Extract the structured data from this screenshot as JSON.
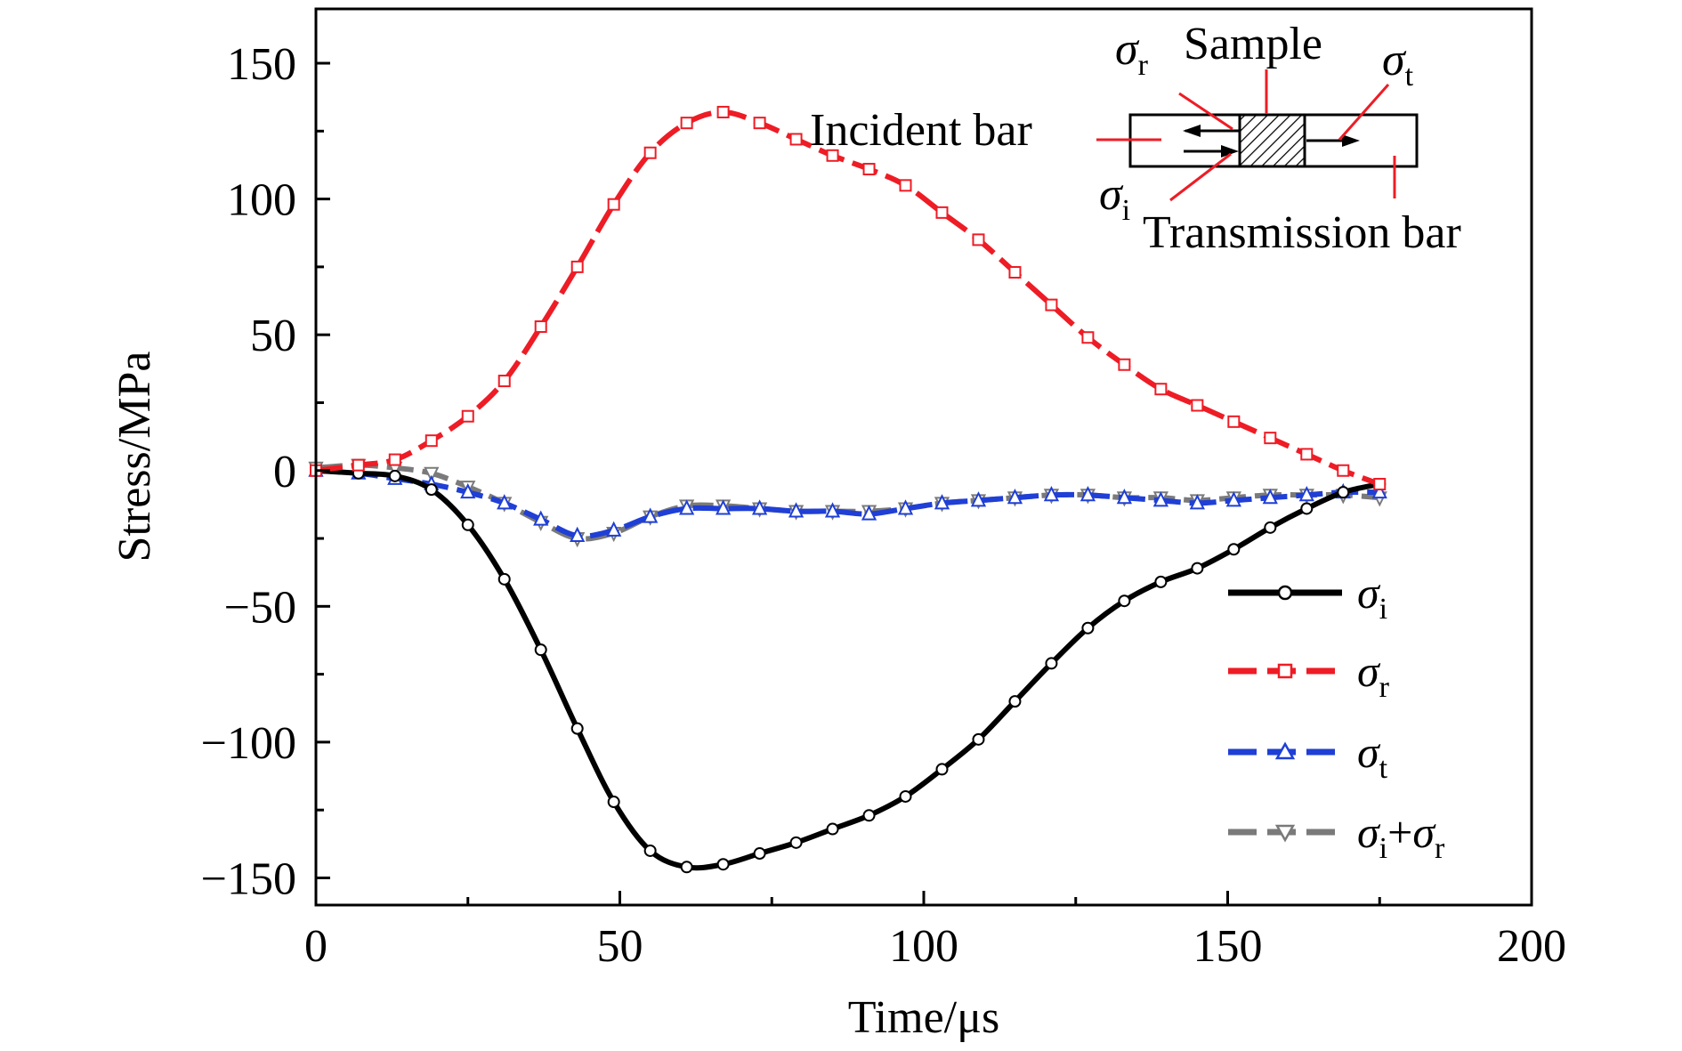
{
  "chart_data": {
    "type": "line",
    "title": "",
    "xlabel": "Time/μs",
    "ylabel": "Stress/MPa",
    "xlim": [
      0,
      200
    ],
    "ylim": [
      -160,
      170
    ],
    "xticks": [
      0,
      50,
      100,
      150,
      200
    ],
    "yticks": [
      -150,
      -100,
      -50,
      0,
      50,
      100,
      150
    ],
    "legend_position": "bottom-right",
    "grid": false,
    "series": [
      {
        "name": "σi",
        "name_symbol": "σ",
        "name_sub": "i",
        "color": "#000000",
        "dash": "solid",
        "marker": "circle",
        "x": [
          0,
          7,
          13,
          19,
          25,
          31,
          37,
          43,
          49,
          55,
          61,
          67,
          73,
          79,
          85,
          91,
          97,
          103,
          109,
          115,
          121,
          127,
          133,
          139,
          145,
          151,
          157,
          163,
          169,
          175
        ],
        "y": [
          0,
          -1,
          -2,
          -7,
          -20,
          -40,
          -66,
          -95,
          -122,
          -140,
          -146,
          -145,
          -141,
          -137,
          -132,
          -127,
          -120,
          -110,
          -99,
          -85,
          -71,
          -58,
          -48,
          -41,
          -36,
          -29,
          -21,
          -14,
          -8,
          -5
        ]
      },
      {
        "name": "σr",
        "name_symbol": "σ",
        "name_sub": "r",
        "color": "#ee1c25",
        "dash": "dashed",
        "marker": "square",
        "x": [
          0,
          7,
          13,
          19,
          25,
          31,
          37,
          43,
          49,
          55,
          61,
          67,
          73,
          79,
          85,
          91,
          97,
          103,
          109,
          115,
          121,
          127,
          133,
          139,
          145,
          151,
          157,
          163,
          169,
          175
        ],
        "y": [
          0,
          2,
          4,
          11,
          20,
          33,
          53,
          75,
          98,
          117,
          128,
          132,
          128,
          122,
          116,
          111,
          105,
          95,
          85,
          73,
          61,
          49,
          39,
          30,
          24,
          18,
          12,
          6,
          0,
          -5
        ]
      },
      {
        "name": "σt",
        "name_symbol": "σ",
        "name_sub": "t",
        "color": "#1f3fd6",
        "dash": "dashed",
        "marker": "triangle-up",
        "x": [
          0,
          7,
          13,
          19,
          25,
          31,
          37,
          43,
          49,
          55,
          61,
          67,
          73,
          79,
          85,
          91,
          97,
          103,
          109,
          115,
          121,
          127,
          133,
          139,
          145,
          151,
          157,
          163,
          169,
          175
        ],
        "y": [
          0,
          -1,
          -3,
          -5,
          -8,
          -12,
          -18,
          -24,
          -22,
          -17,
          -14,
          -14,
          -14,
          -15,
          -15,
          -16,
          -14,
          -12,
          -11,
          -10,
          -9,
          -9,
          -10,
          -11,
          -12,
          -11,
          -10,
          -9,
          -8,
          -8
        ]
      },
      {
        "name": "σi+σr",
        "name_symbol": "σ",
        "name_sub": "i",
        "name_plus": "+",
        "name_symbol2": "σ",
        "name_sub2": "r",
        "color": "#7a7a7a",
        "dash": "dashed",
        "marker": "triangle-down",
        "x": [
          0,
          7,
          13,
          19,
          25,
          31,
          37,
          43,
          49,
          55,
          61,
          67,
          73,
          79,
          85,
          91,
          97,
          103,
          109,
          115,
          121,
          127,
          133,
          139,
          145,
          151,
          157,
          163,
          169,
          175
        ],
        "y": [
          1,
          2,
          1,
          -1,
          -6,
          -12,
          -19,
          -25,
          -23,
          -17,
          -13,
          -13,
          -14,
          -15,
          -15,
          -15,
          -14,
          -12,
          -11,
          -10,
          -9,
          -9,
          -10,
          -10,
          -11,
          -10,
          -9,
          -9,
          -9,
          -10
        ]
      }
    ],
    "inset": {
      "sample_label": "Sample",
      "incident_label": "Incident bar",
      "transmission_label": "Transmission bar",
      "sigma_r_symbol": "σ",
      "sigma_r_sub": "r",
      "sigma_t_symbol": "σ",
      "sigma_t_sub": "t",
      "sigma_i_symbol": "σ",
      "sigma_i_sub": "i"
    }
  }
}
